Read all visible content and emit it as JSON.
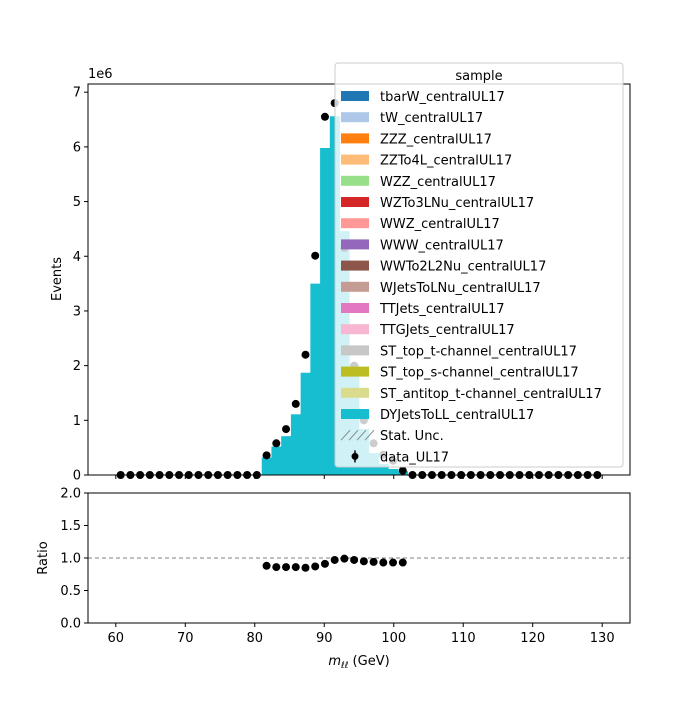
{
  "chart_data": [
    {
      "type": "bar",
      "subtype": "stacked-histogram-with-data-points",
      "ylabel": "Events",
      "y_offset_text": "1e6",
      "ylim": [
        0,
        7150000
      ],
      "xlim": [
        56,
        134
      ],
      "yticks": [
        "0",
        "1",
        "2",
        "3",
        "4",
        "5",
        "6",
        "7"
      ],
      "legend": {
        "title": "sample",
        "placement": "top-right",
        "entries": [
          {
            "name": "tbarW_centralUL17",
            "color": "#1f77b4",
            "kind": "patch"
          },
          {
            "name": "tW_centralUL17",
            "color": "#aec7e8",
            "kind": "patch"
          },
          {
            "name": "ZZZ_centralUL17",
            "color": "#ff7f0e",
            "kind": "patch"
          },
          {
            "name": "ZZTo4L_centralUL17",
            "color": "#ffbb78",
            "kind": "patch"
          },
          {
            "name": "WZZ_centralUL17",
            "color": "#98df8a",
            "kind": "patch"
          },
          {
            "name": "WZTo3LNu_centralUL17",
            "color": "#d62728",
            "kind": "patch"
          },
          {
            "name": "WWZ_centralUL17",
            "color": "#ff9896",
            "kind": "patch"
          },
          {
            "name": "WWW_centralUL17",
            "color": "#9467bd",
            "kind": "patch"
          },
          {
            "name": "WWTo2L2Nu_centralUL17",
            "color": "#8c564b",
            "kind": "patch"
          },
          {
            "name": "WJetsToLNu_centralUL17",
            "color": "#c49c94",
            "kind": "patch"
          },
          {
            "name": "TTJets_centralUL17",
            "color": "#e377c2",
            "kind": "patch"
          },
          {
            "name": "TTGJets_centralUL17",
            "color": "#f7b6d2",
            "kind": "patch"
          },
          {
            "name": "ST_top_t-channel_centralUL17",
            "color": "#c7c7c7",
            "kind": "patch"
          },
          {
            "name": "ST_top_s-channel_centralUL17",
            "color": "#bcbd22",
            "kind": "patch"
          },
          {
            "name": "ST_antitop_t-channel_centralUL17",
            "color": "#dbdb8d",
            "kind": "patch"
          },
          {
            "name": "DYJetsToLL_centralUL17",
            "color": "#17becf",
            "kind": "patch"
          },
          {
            "name": "Stat. Unc.",
            "color": "#888888",
            "kind": "hatch"
          },
          {
            "name": "data_UL17",
            "color": "#000000",
            "kind": "errorbar"
          }
        ]
      },
      "bin_edges": [
        60,
        61.4,
        62.8,
        64.2,
        65.6,
        67,
        68.4,
        69.8,
        71.2,
        72.6,
        74,
        75.4,
        76.8,
        78.2,
        79.6,
        81,
        82.4,
        83.8,
        85.2,
        86.6,
        88,
        89.4,
        90.8,
        92.2,
        93.6,
        95,
        96.4,
        97.8,
        99.2,
        100.6,
        102,
        103.4,
        104.8,
        106.2,
        107.6,
        109,
        110.4,
        111.8,
        113.2,
        114.6,
        116,
        117.4,
        118.8,
        120.2,
        121.6,
        123,
        124.4,
        125.8,
        127.2,
        128.6,
        130
      ],
      "series": [
        {
          "name": "DYJetsToLL_centralUL17",
          "color": "#17becf",
          "values": [
            0,
            0,
            0,
            0,
            0,
            0,
            0,
            0,
            0,
            0,
            0,
            0,
            0,
            0,
            0,
            320000,
            520000,
            710000,
            1110000,
            1870000,
            3500000,
            5980000,
            6560000,
            4460000,
            2020000,
            840000,
            400000,
            200000,
            110000,
            70000,
            0,
            0,
            0,
            0,
            0,
            0,
            0,
            0,
            0,
            0,
            0,
            0,
            0,
            0,
            0,
            0,
            0,
            0,
            0,
            0
          ]
        },
        {
          "name": "data_UL17",
          "color": "#000000",
          "x": [
            60.7,
            62.1,
            63.5,
            64.9,
            66.3,
            67.7,
            69.1,
            70.5,
            71.9,
            73.3,
            74.7,
            76.1,
            77.5,
            78.9,
            80.3,
            81.7,
            83.1,
            84.5,
            85.9,
            87.3,
            88.7,
            90.1,
            91.5,
            92.9,
            94.3,
            95.7,
            97.1,
            98.5,
            99.9,
            101.3,
            102.7,
            104.1,
            105.5,
            106.9,
            108.3,
            109.7,
            111.1,
            112.5,
            113.9,
            115.3,
            116.7,
            118.1,
            119.5,
            120.9,
            122.3,
            123.7,
            125.1,
            126.5,
            127.9,
            129.3
          ],
          "values": [
            0,
            0,
            0,
            0,
            0,
            0,
            0,
            0,
            0,
            0,
            0,
            0,
            0,
            0,
            0,
            360000,
            580000,
            840000,
            1300000,
            2200000,
            4010000,
            6550000,
            6800000,
            4150000,
            2000000,
            1000000,
            580000,
            370000,
            260000,
            80000,
            0,
            0,
            0,
            0,
            0,
            0,
            0,
            0,
            0,
            0,
            0,
            0,
            0,
            0,
            0,
            0,
            0,
            0,
            0,
            0
          ]
        }
      ]
    },
    {
      "type": "scatter",
      "ylabel": "Ratio",
      "xlabel_main": "m",
      "xlabel_sub": "ℓℓ",
      "xlabel_unit": " (GeV)",
      "ylim": [
        0,
        2
      ],
      "xlim": [
        56,
        134
      ],
      "yticks": [
        "0.0",
        "0.5",
        "1.0",
        "1.5",
        "2.0"
      ],
      "xticks": [
        "60",
        "70",
        "80",
        "90",
        "100",
        "110",
        "120",
        "130"
      ],
      "reference_line": 1.0,
      "x": [
        81.7,
        83.1,
        84.5,
        85.9,
        87.3,
        88.7,
        90.1,
        91.5,
        92.9,
        94.3,
        95.7,
        97.1,
        98.5,
        99.9,
        101.3
      ],
      "values": [
        0.88,
        0.86,
        0.86,
        0.86,
        0.85,
        0.87,
        0.91,
        0.97,
        0.99,
        0.97,
        0.95,
        0.94,
        0.93,
        0.93,
        0.93
      ]
    }
  ]
}
